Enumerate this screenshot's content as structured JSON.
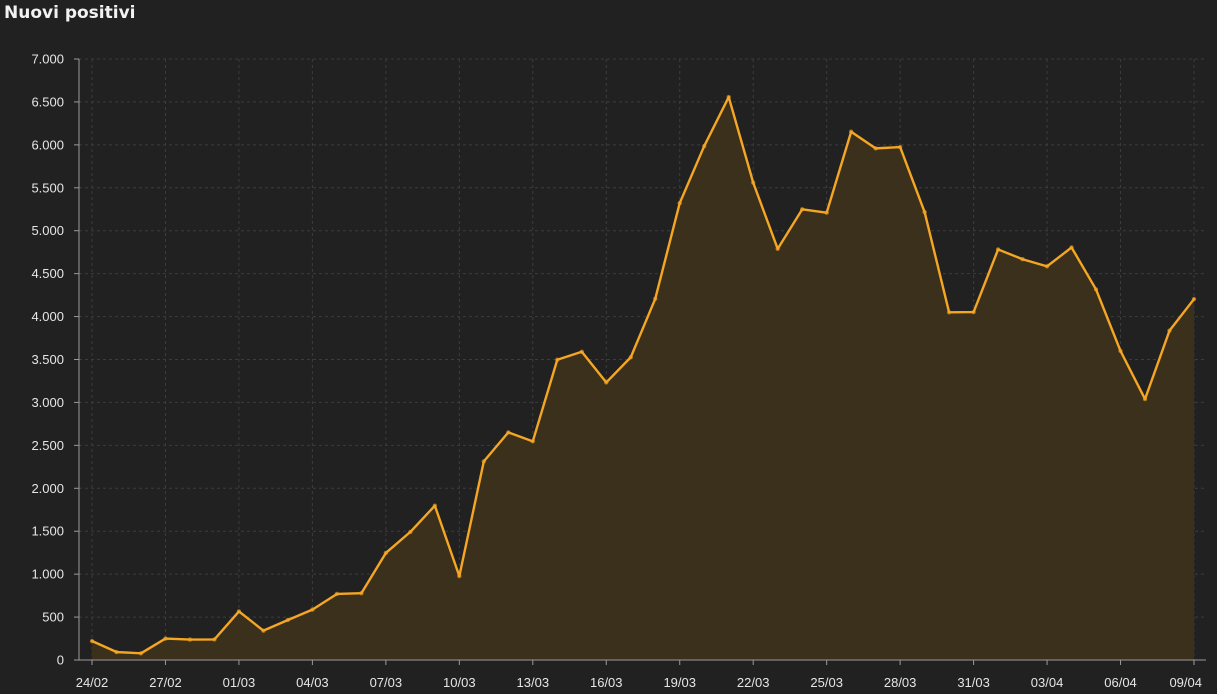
{
  "colors": {
    "background": "#212121",
    "line": "#f5a623",
    "area": "#3a301c",
    "grid": "#3c3c3c",
    "axis": "#9a9a9a",
    "text": "#e6e6e6"
  },
  "chart_data": {
    "type": "area",
    "title": "Nuovi positivi",
    "xlabel": "",
    "ylabel": "",
    "ylim": [
      0,
      7000
    ],
    "grid": true,
    "legend": "none",
    "y_ticks": [
      {
        "value": 0,
        "label": "0"
      },
      {
        "value": 500,
        "label": "500"
      },
      {
        "value": 1000,
        "label": "1.000"
      },
      {
        "value": 1500,
        "label": "1.500"
      },
      {
        "value": 2000,
        "label": "2.000"
      },
      {
        "value": 2500,
        "label": "2.500"
      },
      {
        "value": 3000,
        "label": "3.000"
      },
      {
        "value": 3500,
        "label": "3.500"
      },
      {
        "value": 4000,
        "label": "4.000"
      },
      {
        "value": 4500,
        "label": "4.500"
      },
      {
        "value": 5000,
        "label": "5.000"
      },
      {
        "value": 5500,
        "label": "5.500"
      },
      {
        "value": 6000,
        "label": "6.000"
      },
      {
        "value": 6500,
        "label": "6.500"
      },
      {
        "value": 7000,
        "label": "7.000"
      }
    ],
    "x_tick_labels": [
      "24/02",
      "27/02",
      "01/03",
      "04/03",
      "07/03",
      "10/03",
      "13/03",
      "16/03",
      "19/03",
      "22/03",
      "25/03",
      "28/03",
      "31/03",
      "03/04",
      "06/04",
      "09/04"
    ],
    "x": [
      "24/02",
      "25/02",
      "26/02",
      "27/02",
      "28/02",
      "29/02",
      "01/03",
      "02/03",
      "03/03",
      "04/03",
      "05/03",
      "06/03",
      "07/03",
      "08/03",
      "09/03",
      "10/03",
      "11/03",
      "12/03",
      "13/03",
      "14/03",
      "15/03",
      "16/03",
      "17/03",
      "18/03",
      "19/03",
      "20/03",
      "21/03",
      "22/03",
      "23/03",
      "24/03",
      "25/03",
      "26/03",
      "27/03",
      "28/03",
      "29/03",
      "30/03",
      "31/03",
      "01/04",
      "02/04",
      "03/04",
      "04/04",
      "05/04",
      "06/04",
      "07/04",
      "08/04",
      "09/04"
    ],
    "series": [
      {
        "values": [
          221,
          93,
          78,
          250,
          238,
          240,
          566,
          342,
          466,
          587,
          769,
          778,
          1247,
          1492,
          1797,
          977,
          2313,
          2651,
          2547,
          3497,
          3590,
          3233,
          3526,
          4207,
          5322,
          5986,
          6557,
          5560,
          4789,
          5249,
          5210,
          6153,
          5959,
          5974,
          5217,
          4050,
          4053,
          4782,
          4668,
          4585,
          4805,
          4316,
          3599,
          3039,
          3836,
          4204
        ]
      }
    ]
  }
}
